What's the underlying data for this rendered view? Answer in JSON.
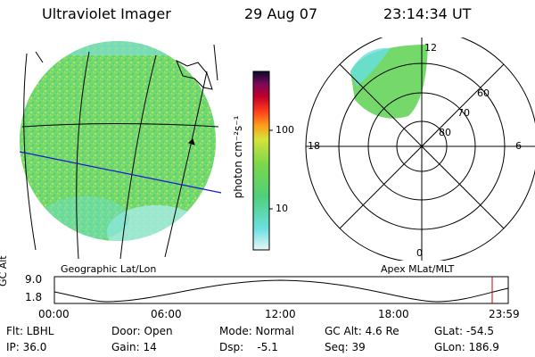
{
  "header": {
    "instrument": "Ultraviolet Imager",
    "date": "29 Aug 07",
    "time": "23:14:34 UT"
  },
  "colorbar": {
    "unit_label": "photon cm⁻²s⁻¹",
    "tick_100": "100",
    "tick_10": "10"
  },
  "polar": {
    "lat_60": "60",
    "lat_70": "70",
    "lat_80": "80",
    "mlt_12": "12",
    "mlt_18": "18",
    "mlt_6": "6",
    "mlt_0": "0"
  },
  "map_labels": {
    "geo": "Geographic Lat/Lon",
    "apex": "Apex MLat/MLT"
  },
  "altitude_plot": {
    "axis_label": "GC Alt",
    "y_top": "9.0",
    "y_bottom": "1.8",
    "x_ticks": [
      "00:00",
      "06:00",
      "12:00",
      "18:00",
      "23:59"
    ]
  },
  "status": {
    "row1": {
      "flt": "Flt: LBHL",
      "door": "Door: Open",
      "mode": "Mode: Normal",
      "gcalt": "GC Alt: 4.6 Re",
      "glat": "GLat: -54.5"
    },
    "row2": {
      "ip": "IP: 36.0",
      "gain": "Gain: 14",
      "dsp": "Dsp:    -5.1",
      "seq": "Seq: 39",
      "glon": "GLon: 186.9"
    }
  },
  "colors": {
    "image_green": "#6fd66a",
    "image_cyan": "#66e0e0",
    "track_blue": "#1a1acc",
    "marker_red": "#cc0000"
  }
}
